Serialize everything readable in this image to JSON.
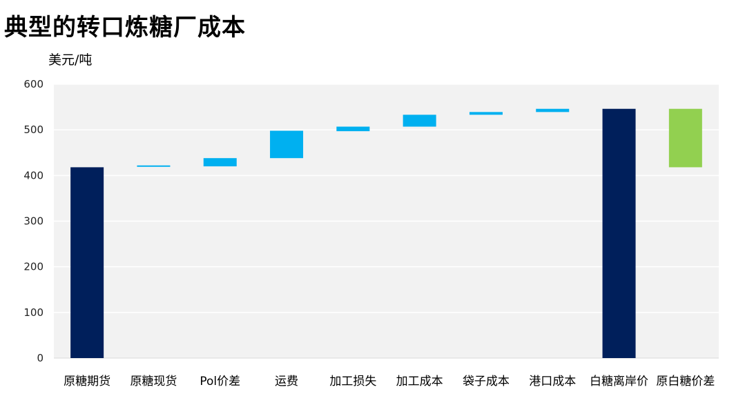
{
  "title": "典型的转口炼糖厂成本",
  "unit_label": "美元/吨",
  "colors": {
    "total_bar": "#001F5B",
    "step_bar": "#00B0F0",
    "diff_bar": "#92D050",
    "plot_background": "#F2F2F2",
    "gridline": "#FFFFFF"
  },
  "chart_data": {
    "type": "bar",
    "subtype": "waterfall",
    "title": "典型的转口炼糖厂成本",
    "ylabel": "美元/吨",
    "ylim": [
      0,
      600
    ],
    "yticks": [
      0,
      100,
      200,
      300,
      400,
      500,
      600
    ],
    "grid": true,
    "legend": "none",
    "bars": [
      {
        "category": "原糖期货",
        "kind": "total",
        "base": 0,
        "top": 418
      },
      {
        "category": "原糖现货",
        "kind": "step",
        "base": 419,
        "top": 421
      },
      {
        "category": "Pol价差",
        "kind": "step",
        "base": 420,
        "top": 438
      },
      {
        "category": "运费",
        "kind": "step",
        "base": 438,
        "top": 498
      },
      {
        "category": "加工损失",
        "kind": "step",
        "base": 497,
        "top": 507
      },
      {
        "category": "加工成本",
        "kind": "step",
        "base": 507,
        "top": 533
      },
      {
        "category": "袋子成本",
        "kind": "step",
        "base": 533,
        "top": 539
      },
      {
        "category": "港口成本",
        "kind": "step",
        "base": 539,
        "top": 546
      },
      {
        "category": "白糖离岸价",
        "kind": "total",
        "base": 0,
        "top": 546
      },
      {
        "category": "原白糖价差",
        "kind": "diff",
        "base": 418,
        "top": 546
      }
    ]
  }
}
